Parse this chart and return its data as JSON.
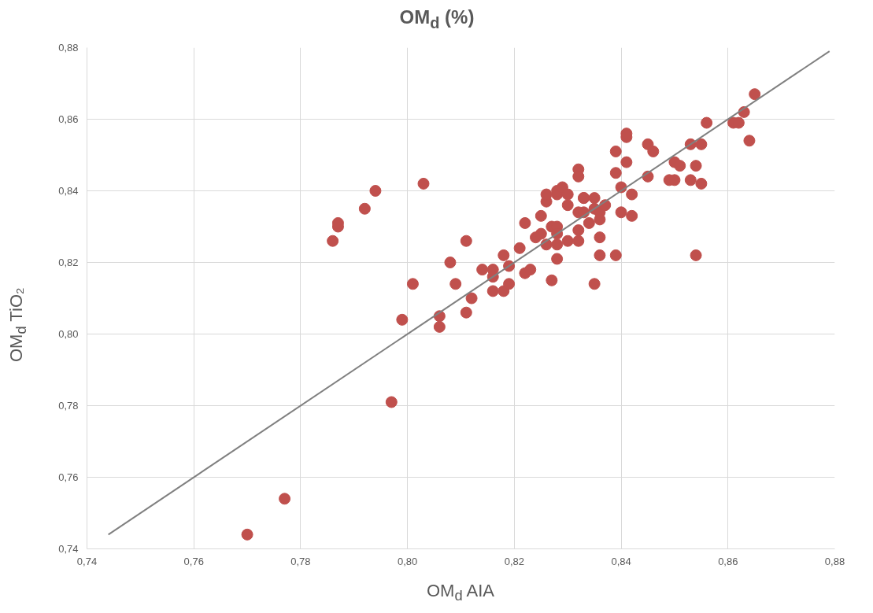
{
  "chart_data": {
    "type": "scatter",
    "title": "OM$_{d}$ (%)",
    "xlabel": "OM$_{d}$ AIA",
    "ylabel": "OM$_{d}$ TiO₂",
    "xlim": [
      0.74,
      0.88
    ],
    "ylim": [
      0.74,
      0.88
    ],
    "xticks": [
      {
        "value": 0.74,
        "label": "0,74"
      },
      {
        "value": 0.76,
        "label": "0,76"
      },
      {
        "value": 0.78,
        "label": "0,78"
      },
      {
        "value": 0.8,
        "label": "0,80"
      },
      {
        "value": 0.82,
        "label": "0,82"
      },
      {
        "value": 0.84,
        "label": "0,84"
      },
      {
        "value": 0.86,
        "label": "0,86"
      },
      {
        "value": 0.88,
        "label": "0,88"
      }
    ],
    "yticks": [
      {
        "value": 0.74,
        "label": "0,74"
      },
      {
        "value": 0.76,
        "label": "0,76"
      },
      {
        "value": 0.78,
        "label": "0,78"
      },
      {
        "value": 0.8,
        "label": "0,80"
      },
      {
        "value": 0.82,
        "label": "0,82"
      },
      {
        "value": 0.84,
        "label": "0,84"
      },
      {
        "value": 0.86,
        "label": "0,86"
      },
      {
        "value": 0.88,
        "label": "0,88"
      }
    ],
    "grid": true,
    "marker": "circle",
    "series": [
      {
        "color": "#c0504d",
        "x": [
          0.77,
          0.777,
          0.797,
          0.786,
          0.787,
          0.787,
          0.792,
          0.794,
          0.803,
          0.799,
          0.801,
          0.806,
          0.806,
          0.808,
          0.809,
          0.811,
          0.811,
          0.812,
          0.814,
          0.816,
          0.816,
          0.816,
          0.818,
          0.818,
          0.819,
          0.819,
          0.821,
          0.822,
          0.822,
          0.823,
          0.824,
          0.825,
          0.825,
          0.826,
          0.826,
          0.826,
          0.827,
          0.827,
          0.828,
          0.828,
          0.828,
          0.828,
          0.828,
          0.828,
          0.829,
          0.83,
          0.83,
          0.83,
          0.832,
          0.832,
          0.832,
          0.832,
          0.832,
          0.833,
          0.833,
          0.833,
          0.834,
          0.835,
          0.835,
          0.835,
          0.836,
          0.836,
          0.836,
          0.836,
          0.837,
          0.839,
          0.839,
          0.839,
          0.84,
          0.84,
          0.841,
          0.841,
          0.841,
          0.842,
          0.842,
          0.845,
          0.845,
          0.846,
          0.849,
          0.85,
          0.85,
          0.851,
          0.853,
          0.853,
          0.854,
          0.854,
          0.855,
          0.855,
          0.856,
          0.861,
          0.862,
          0.863,
          0.864,
          0.865
        ],
        "values": [
          0.744,
          0.754,
          0.781,
          0.826,
          0.83,
          0.831,
          0.835,
          0.84,
          0.842,
          0.804,
          0.814,
          0.805,
          0.802,
          0.82,
          0.814,
          0.826,
          0.806,
          0.81,
          0.818,
          0.818,
          0.816,
          0.812,
          0.822,
          0.812,
          0.819,
          0.814,
          0.824,
          0.831,
          0.817,
          0.818,
          0.827,
          0.828,
          0.833,
          0.825,
          0.837,
          0.839,
          0.815,
          0.83,
          0.839,
          0.825,
          0.821,
          0.84,
          0.83,
          0.828,
          0.841,
          0.839,
          0.826,
          0.836,
          0.834,
          0.846,
          0.844,
          0.829,
          0.826,
          0.838,
          0.834,
          0.838,
          0.831,
          0.835,
          0.838,
          0.814,
          0.834,
          0.822,
          0.832,
          0.827,
          0.836,
          0.822,
          0.845,
          0.851,
          0.834,
          0.841,
          0.855,
          0.856,
          0.848,
          0.833,
          0.839,
          0.844,
          0.853,
          0.851,
          0.843,
          0.843,
          0.848,
          0.847,
          0.843,
          0.853,
          0.822,
          0.847,
          0.853,
          0.842,
          0.859,
          0.859,
          0.859,
          0.862,
          0.854,
          0.867
        ]
      },
      {
        "type": "line",
        "color": "#808080",
        "marker": "none",
        "x": [
          0.744,
          0.879
        ],
        "values": [
          0.744,
          0.879
        ]
      }
    ]
  }
}
